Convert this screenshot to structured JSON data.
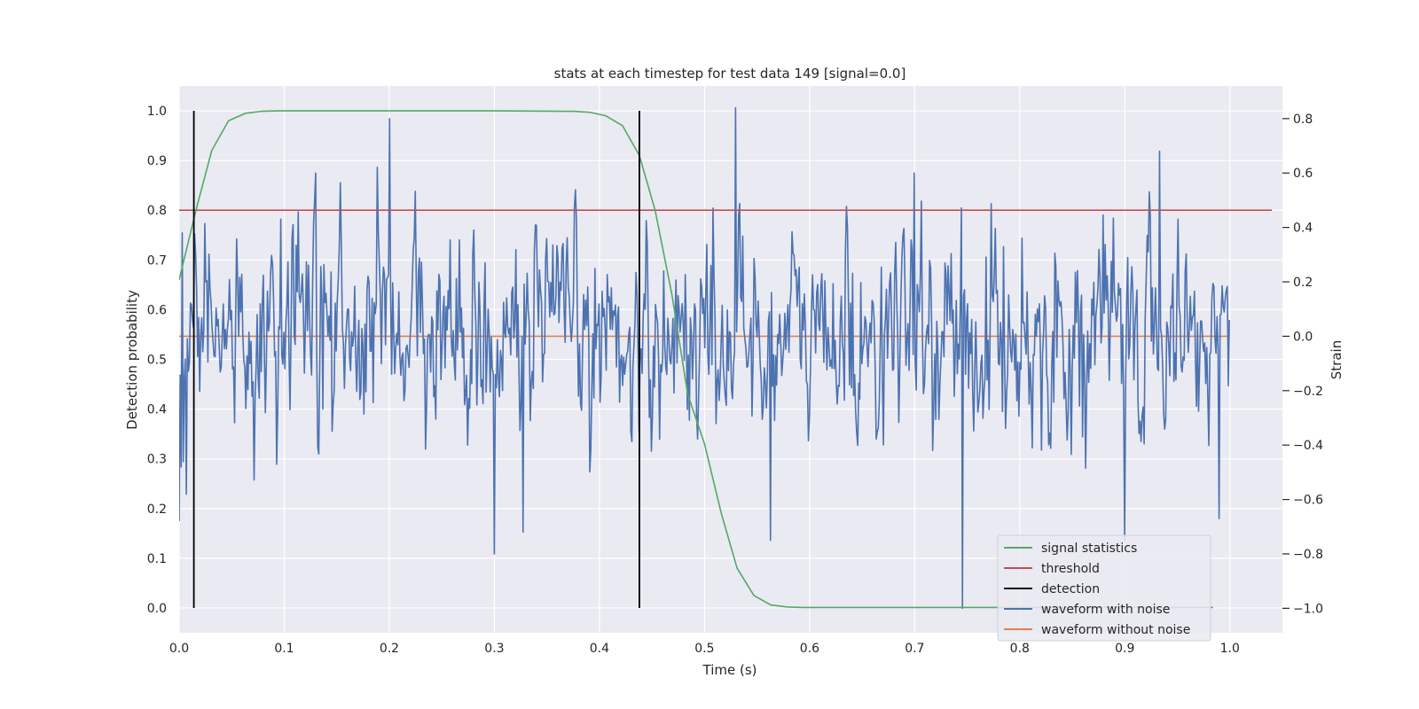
{
  "chart_data": {
    "type": "line",
    "title": "stats at each timestep for test data 149 [signal=0.0]",
    "xlabel": "Time (s)",
    "ylabel_left": "Detection probability",
    "ylabel_right": "Strain",
    "xlim": [
      0.0,
      1.05
    ],
    "ylim_left": [
      -0.05,
      1.05
    ],
    "ylim_right": [
      -1.09,
      0.92
    ],
    "x_ticks": [
      "0.0",
      "0.1",
      "0.2",
      "0.3",
      "0.4",
      "0.5",
      "0.6",
      "0.7",
      "0.8",
      "0.9",
      "1.0"
    ],
    "y_left_ticks": [
      "0.0",
      "0.1",
      "0.2",
      "0.3",
      "0.4",
      "0.5",
      "0.6",
      "0.7",
      "0.8",
      "0.9",
      "1.0"
    ],
    "y_right_ticks": [
      "−1.0",
      "−0.8",
      "−0.6",
      "−0.4",
      "−0.2",
      "0.0",
      "0.2",
      "0.4",
      "0.6",
      "0.8"
    ],
    "grid": true,
    "legend_position": "lower-right",
    "legend": [
      {
        "label": "signal statistics",
        "color": "#55a868"
      },
      {
        "label": "threshold",
        "color": "#c44e52"
      },
      {
        "label": "detection",
        "color": "#000000"
      },
      {
        "label": "waveform with noise",
        "color": "#4c72b0"
      },
      {
        "label": "waveform without noise",
        "color": "#dd8452"
      }
    ],
    "series": [
      {
        "name": "signal statistics",
        "axis": "left",
        "color": "#55a868",
        "x": [
          0.0,
          0.016,
          0.031,
          0.047,
          0.063,
          0.078,
          0.094,
          0.109,
          0.2,
          0.3,
          0.375,
          0.391,
          0.406,
          0.422,
          0.438,
          0.453,
          0.469,
          0.484,
          0.5,
          0.516,
          0.531,
          0.547,
          0.563,
          0.578,
          0.594,
          0.7,
          0.8,
          0.9,
          0.984
        ],
        "y": [
          0.66,
          0.8,
          0.92,
          0.98,
          0.995,
          0.999,
          1.0,
          1.0,
          1.0,
          1.0,
          0.999,
          0.997,
          0.99,
          0.97,
          0.91,
          0.8,
          0.63,
          0.43,
          0.33,
          0.19,
          0.08,
          0.025,
          0.006,
          0.002,
          0.001,
          0.001,
          0.001,
          0.001,
          0.001
        ]
      },
      {
        "name": "threshold",
        "axis": "left",
        "color": "#c44e52",
        "x": [
          0.0,
          1.04
        ],
        "y": [
          0.8,
          0.8
        ]
      },
      {
        "name": "waveform without noise",
        "axis": "right",
        "color": "#dd8452",
        "x": [
          0.0,
          0.9995
        ],
        "y": [
          0.0,
          0.0
        ]
      }
    ],
    "detections": {
      "name": "detection",
      "axis": "left",
      "color": "#000000",
      "x": [
        0.014,
        0.438
      ],
      "y_range": [
        0.0,
        1.0
      ]
    },
    "noise_waveform": {
      "name": "waveform with noise",
      "axis": "right",
      "color": "#4c72b0",
      "sample_rate": 1024,
      "duration": 1.0,
      "amplitude_std": 0.3,
      "x_samples": [
        0.0,
        0.003,
        0.007,
        0.13,
        0.2,
        0.3,
        0.327,
        0.45,
        0.53,
        0.563,
        0.7,
        0.745,
        0.9,
        0.9333,
        0.99,
        0.9995
      ],
      "y_samples": [
        -0.68,
        0.38,
        -0.58,
        0.6,
        0.8,
        -0.8,
        -0.72,
        -0.3,
        0.84,
        -0.75,
        0.6,
        -1.0,
        -0.75,
        0.68,
        -0.67,
        0.06
      ]
    }
  }
}
